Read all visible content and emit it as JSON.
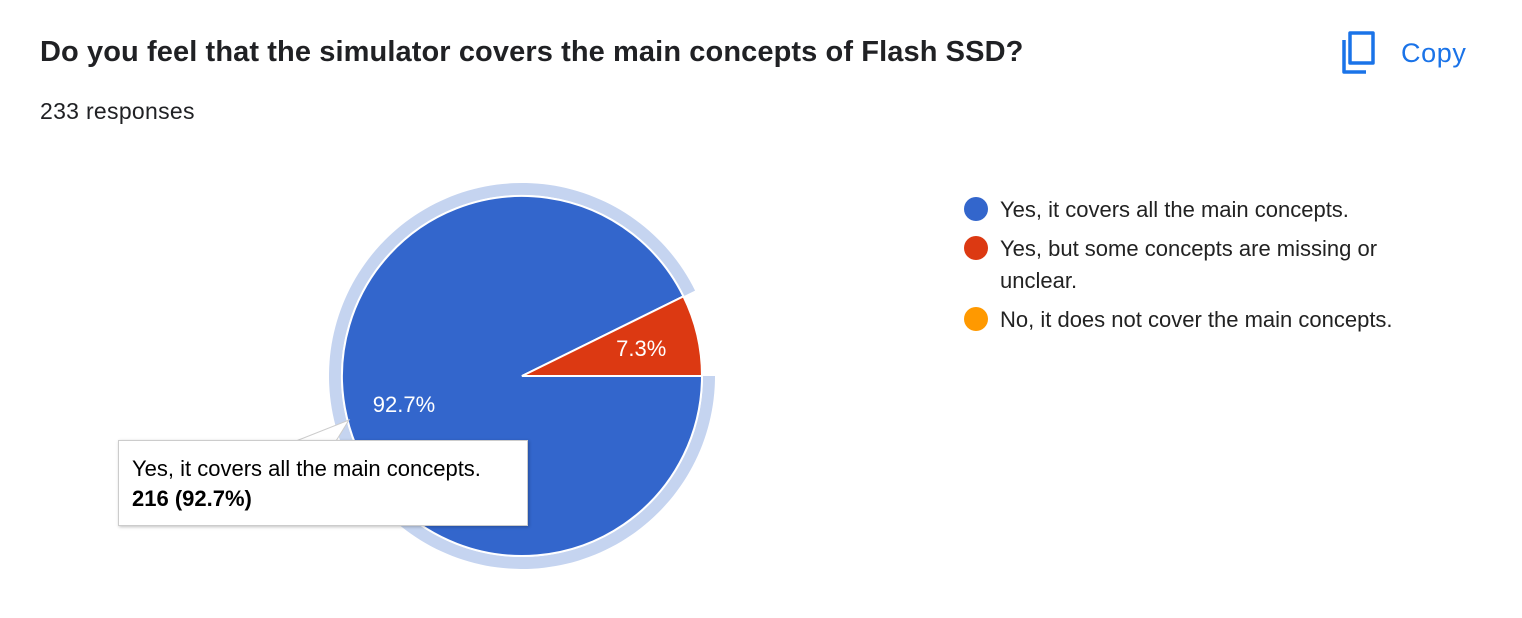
{
  "question": {
    "title": "Do you feel that the simulator covers the main concepts of Flash SSD?",
    "response_count": "233 responses"
  },
  "copy_button": {
    "label": "Copy",
    "icon": "copy-icon",
    "color": "#1a73e8"
  },
  "chart_data": {
    "type": "pie",
    "title": "",
    "total": 233,
    "legend_position": "right",
    "slices": [
      {
        "label": "Yes, it covers all the main concepts.",
        "value": 216,
        "percent": 92.7,
        "percent_label": "92.7%",
        "color": "#3366cc"
      },
      {
        "label": "Yes, but some concepts are missing or unclear.",
        "value": 17,
        "percent": 7.3,
        "percent_label": "7.3%",
        "color": "#dc3912"
      },
      {
        "label": "No, it does not cover the main concepts.",
        "value": 0,
        "percent": 0,
        "percent_label": "",
        "color": "#ff9900"
      }
    ],
    "highlighted_slice": 0,
    "highlight_ring_color": "#c5d4f0",
    "tooltip": {
      "name": "Yes, it covers all the main concepts.",
      "value": "216 (92.7%)"
    }
  }
}
